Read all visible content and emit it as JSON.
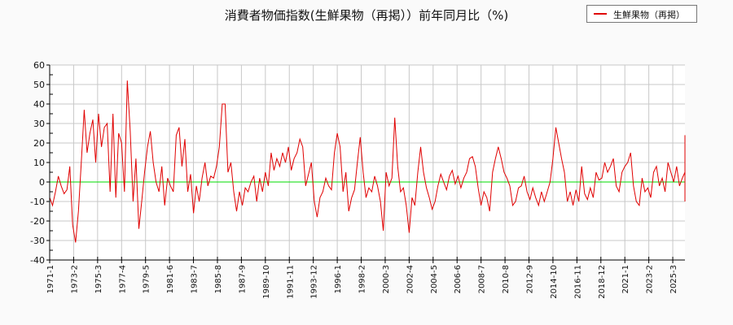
{
  "chart_data": {
    "type": "line",
    "title": "消費者物価指数(生鮮果物（再掲））前年同月比（%)",
    "xlabel": "",
    "ylabel": "",
    "ylim": [
      -40,
      60
    ],
    "yticks": [
      60,
      50,
      40,
      30,
      20,
      10,
      0,
      -10,
      -20,
      -30,
      -40
    ],
    "grid": true,
    "legend_position": "top-right",
    "xtick_labels": [
      "1971-1",
      "1973-2",
      "1975-3",
      "1977-4",
      "1979-5",
      "1981-6",
      "1983-7",
      "1985-8",
      "1987-9",
      "1989-10",
      "1991-11",
      "1993-12",
      "1996-1",
      "1998-2",
      "2000-3",
      "2002-4",
      "2004-5",
      "2006-6",
      "2008-7",
      "2010-8",
      "2012-9",
      "2014-10",
      "2016-11",
      "2018-12",
      "2021-1",
      "2023-2",
      "2025-3"
    ],
    "x_start": "1971-1",
    "x_step_months": 3,
    "series": [
      {
        "name": "生鮮果物（再掲）",
        "color": "#e00000",
        "values": [
          -8,
          -12,
          -5,
          3,
          -2,
          -6,
          -4,
          8,
          -22,
          -31,
          -15,
          10,
          37,
          15,
          25,
          32,
          10,
          35,
          18,
          28,
          30,
          -5,
          35,
          -8,
          25,
          20,
          -5,
          52,
          26,
          -10,
          12,
          -24,
          -10,
          5,
          18,
          26,
          10,
          0,
          -5,
          8,
          -12,
          2,
          -2,
          -5,
          24,
          28,
          8,
          22,
          -5,
          4,
          -16,
          -2,
          -10,
          2,
          10,
          -2,
          3,
          2,
          8,
          18,
          40,
          40,
          5,
          10,
          -5,
          -15,
          -5,
          -12,
          -3,
          -5,
          0,
          3,
          -10,
          2,
          -5,
          5,
          -2,
          15,
          6,
          12,
          8,
          15,
          10,
          18,
          6,
          12,
          15,
          22,
          18,
          -2,
          4,
          10,
          -10,
          -18,
          -8,
          -5,
          2,
          -2,
          -4,
          15,
          25,
          18,
          -5,
          5,
          -15,
          -8,
          -4,
          10,
          23,
          5,
          -8,
          -3,
          -5,
          3,
          -2,
          -10,
          -25,
          5,
          -2,
          2,
          33,
          8,
          -5,
          -3,
          -12,
          -26,
          -8,
          -12,
          5,
          18,
          5,
          -3,
          -8,
          -14,
          -10,
          -2,
          4,
          0,
          -4,
          3,
          6,
          -1,
          3,
          -3,
          2,
          5,
          12,
          13,
          8,
          -3,
          -12,
          -5,
          -8,
          -15,
          5,
          12,
          18,
          12,
          5,
          2,
          -2,
          -12,
          -10,
          -3,
          -2,
          3,
          -5,
          -9,
          -3,
          -8,
          -12,
          -5,
          -10,
          -5,
          0,
          12,
          28,
          20,
          12,
          5,
          -10,
          -5,
          -12,
          -4,
          -10,
          8,
          -6,
          -9,
          -3,
          -8,
          5,
          1,
          2,
          10,
          5,
          8,
          12,
          -2,
          -5,
          5,
          8,
          10,
          15,
          -2,
          -10,
          -12,
          2,
          -5,
          -3,
          -8,
          5,
          8,
          -2,
          2,
          -5,
          10,
          5,
          0,
          8,
          -2,
          2,
          5,
          4,
          10,
          6,
          15,
          24,
          10,
          -3,
          -8,
          -5,
          -2,
          -8,
          15,
          13,
          8,
          15,
          5,
          -2,
          5,
          -3,
          5,
          2,
          10,
          20,
          12,
          8,
          15,
          10,
          12,
          24,
          8,
          5,
          6,
          5,
          -5,
          -10
        ]
      }
    ]
  },
  "header": {
    "title": "消費者物価指数(生鮮果物（再掲））前年同月比（%)"
  },
  "legend": {
    "items": [
      {
        "label": "生鮮果物（再掲）",
        "color": "#e00000"
      }
    ]
  }
}
